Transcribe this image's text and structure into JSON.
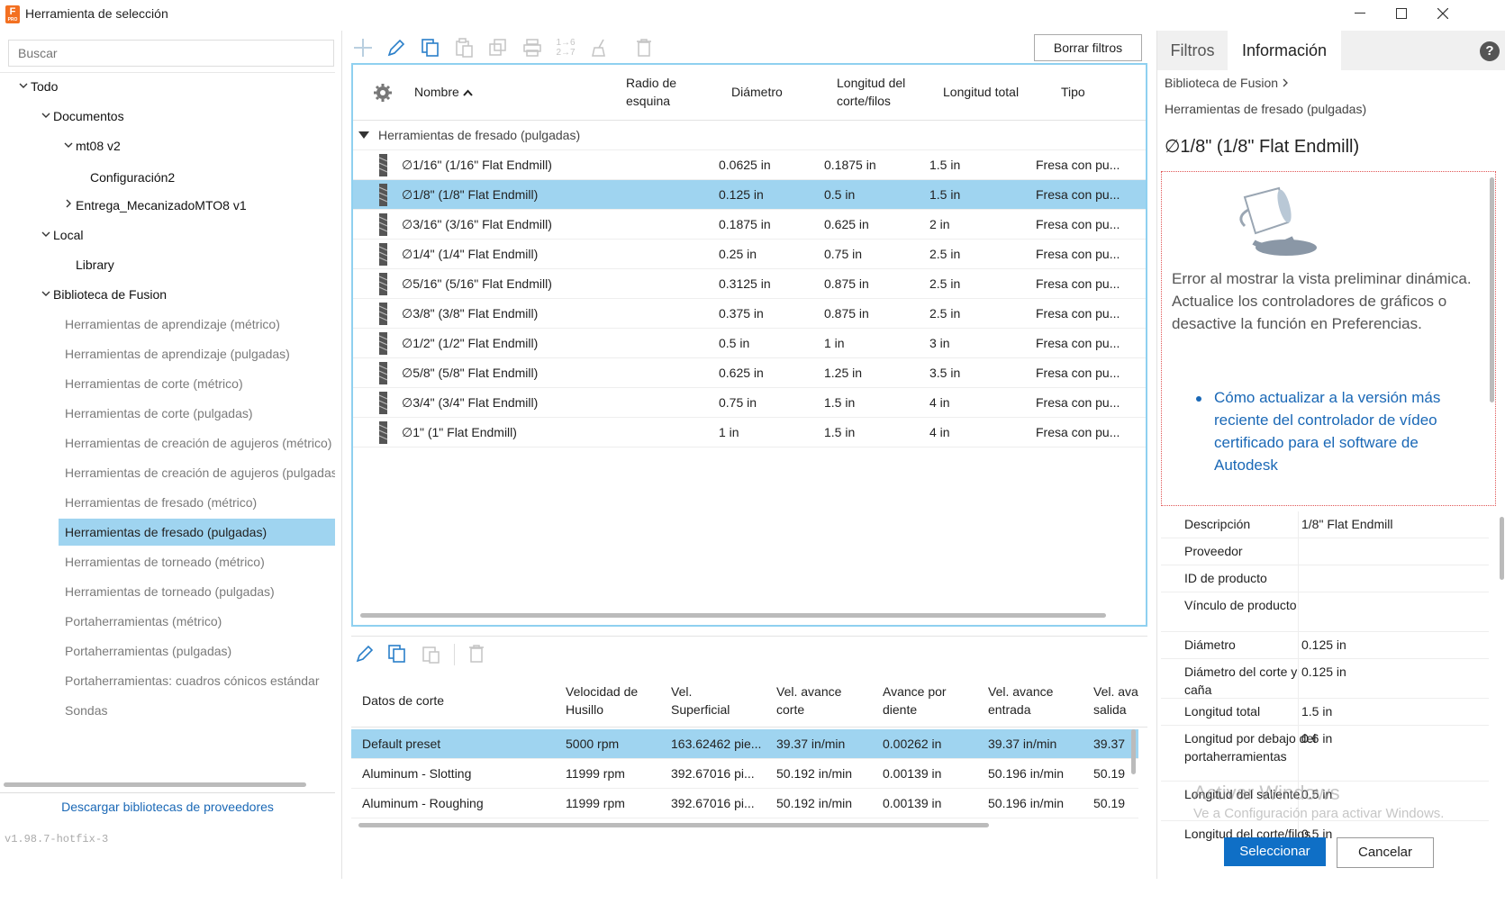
{
  "window": {
    "title": "Herramienta de selección",
    "app_icon_letter": "F",
    "app_icon_sub": "PRO"
  },
  "left": {
    "search_placeholder": "Buscar",
    "tree": [
      {
        "label": "Todo",
        "level": 0,
        "chev": "down",
        "style": "bold"
      },
      {
        "label": "Documentos",
        "level": 1,
        "chev": "down",
        "style": "bold"
      },
      {
        "label": "mt08 v2",
        "level": 2,
        "chev": "down",
        "style": "bold"
      },
      {
        "label": "Configuración2",
        "level": 3,
        "chev": "",
        "style": "bold"
      },
      {
        "label": "Entrega_MecanizadoMTO8 v1",
        "level": 2,
        "chev": "right",
        "style": "bold"
      },
      {
        "label": "Local",
        "level": 1,
        "chev": "down",
        "style": "bold"
      },
      {
        "label": "Library",
        "level": 2,
        "chev": "",
        "style": "bold"
      },
      {
        "label": "Biblioteca de Fusion",
        "level": 1,
        "chev": "down",
        "style": "bold"
      },
      {
        "label": "Herramientas de aprendizaje (métrico)",
        "level": 2,
        "chev": "",
        "style": "grey"
      },
      {
        "label": "Herramientas de aprendizaje (pulgadas)",
        "level": 2,
        "chev": "",
        "style": "grey"
      },
      {
        "label": "Herramientas de corte (métrico)",
        "level": 2,
        "chev": "",
        "style": "grey"
      },
      {
        "label": "Herramientas de corte (pulgadas)",
        "level": 2,
        "chev": "",
        "style": "grey"
      },
      {
        "label": "Herramientas de creación de agujeros (métrico)",
        "level": 2,
        "chev": "",
        "style": "grey"
      },
      {
        "label": "Herramientas de creación de agujeros (pulgadas)",
        "level": 2,
        "chev": "",
        "style": "grey"
      },
      {
        "label": "Herramientas de fresado (métrico)",
        "level": 2,
        "chev": "",
        "style": "grey"
      },
      {
        "label": "Herramientas de fresado (pulgadas)",
        "level": 2,
        "chev": "",
        "style": "sel"
      },
      {
        "label": "Herramientas de torneado (métrico)",
        "level": 2,
        "chev": "",
        "style": "grey"
      },
      {
        "label": "Herramientas de torneado (pulgadas)",
        "level": 2,
        "chev": "",
        "style": "grey"
      },
      {
        "label": "Portaherramientas (métrico)",
        "level": 2,
        "chev": "",
        "style": "grey"
      },
      {
        "label": "Portaherramientas (pulgadas)",
        "level": 2,
        "chev": "",
        "style": "grey"
      },
      {
        "label": "Portaherramientas: cuadros cónicos estándar",
        "level": 2,
        "chev": "",
        "style": "grey"
      },
      {
        "label": "Sondas",
        "level": 2,
        "chev": "",
        "style": "grey"
      }
    ],
    "footer_link": "Descargar bibliotecas de proveedores",
    "version": "v1.98.7-hotfix-3"
  },
  "toolbar": {
    "clear_filters": "Borrar filtros",
    "renumber_top": "1→6",
    "renumber_bottom": "2→7"
  },
  "table": {
    "headers": {
      "name": "Nombre",
      "corner_radius": "Radio de\nesquina",
      "diameter": "Diámetro",
      "flute_length": "Longitud del\ncorte/filos",
      "total_length": "Longitud total",
      "type": "Tipo"
    },
    "group": "Herramientas de fresado (pulgadas)",
    "rows": [
      {
        "name": "∅1/16\" (1/16\" Flat Endmill)",
        "diameter": "0.0625 in",
        "flute": "0.1875 in",
        "total": "1.5 in",
        "type": "Fresa con pu...",
        "selected": false
      },
      {
        "name": "∅1/8\" (1/8\" Flat Endmill)",
        "diameter": "0.125 in",
        "flute": "0.5 in",
        "total": "1.5 in",
        "type": "Fresa con pu...",
        "selected": true
      },
      {
        "name": "∅3/16\" (3/16\" Flat Endmill)",
        "diameter": "0.1875 in",
        "flute": "0.625 in",
        "total": "2 in",
        "type": "Fresa con pu...",
        "selected": false
      },
      {
        "name": "∅1/4\" (1/4\" Flat Endmill)",
        "diameter": "0.25 in",
        "flute": "0.75 in",
        "total": "2.5 in",
        "type": "Fresa con pu...",
        "selected": false
      },
      {
        "name": "∅5/16\" (5/16\" Flat Endmill)",
        "diameter": "0.3125 in",
        "flute": "0.875 in",
        "total": "2.5 in",
        "type": "Fresa con pu...",
        "selected": false
      },
      {
        "name": "∅3/8\" (3/8\" Flat Endmill)",
        "diameter": "0.375 in",
        "flute": "0.875 in",
        "total": "2.5 in",
        "type": "Fresa con pu...",
        "selected": false
      },
      {
        "name": "∅1/2\" (1/2\" Flat Endmill)",
        "diameter": "0.5 in",
        "flute": "1 in",
        "total": "3 in",
        "type": "Fresa con pu...",
        "selected": false
      },
      {
        "name": "∅5/8\" (5/8\" Flat Endmill)",
        "diameter": "0.625 in",
        "flute": "1.25 in",
        "total": "3.5 in",
        "type": "Fresa con pu...",
        "selected": false
      },
      {
        "name": "∅3/4\" (3/4\" Flat Endmill)",
        "diameter": "0.75 in",
        "flute": "1.5 in",
        "total": "4 in",
        "type": "Fresa con pu...",
        "selected": false
      },
      {
        "name": "∅1\" (1\" Flat Endmill)",
        "diameter": "1 in",
        "flute": "1.5 in",
        "total": "4 in",
        "type": "Fresa con pu...",
        "selected": false
      }
    ]
  },
  "presets": {
    "headers": [
      "Datos de corte",
      "Velocidad de\nHusillo",
      "Vel.\nSuperficial",
      "Vel. avance\ncorte",
      "Avance por\ndiente",
      "Vel. avance\nentrada",
      "Vel. ava\nsalida"
    ],
    "rows": [
      {
        "cells": [
          "Default preset",
          "5000 rpm",
          "163.62462 pie...",
          "39.37 in/min",
          "0.00262 in",
          "39.37 in/min",
          "39.37"
        ],
        "selected": true
      },
      {
        "cells": [
          "Aluminum - Slotting",
          "11999 rpm",
          "392.67016 pi...",
          "50.192 in/min",
          "0.00139 in",
          "50.196 in/min",
          "50.19"
        ],
        "selected": false
      },
      {
        "cells": [
          "Aluminum - Roughing",
          "11999 rpm",
          "392.67016 pi...",
          "50.192 in/min",
          "0.00139 in",
          "50.196 in/min",
          "50.19"
        ],
        "selected": false
      }
    ]
  },
  "right": {
    "tabs": [
      "Filtros",
      "Información"
    ],
    "active_tab": "Información",
    "help": "?",
    "breadcrumb1": "Biblioteca de Fusion",
    "breadcrumb2": "Herramientas de fresado (pulgadas)",
    "tool_title": "∅1/8\" (1/8\" Flat Endmill)",
    "preview_error": "Error al mostrar la vista preliminar dinámica. Actualice los controladores de gráficos o desactive la función en Preferencias.",
    "preview_link": "Cómo actualizar a la versión más reciente del controlador de vídeo certificado para el software de Autodesk",
    "properties": [
      {
        "k": "Descripción",
        "v": "1/8\" Flat Endmill",
        "h": 30
      },
      {
        "k": "Proveedor",
        "v": "",
        "h": 30
      },
      {
        "k": "ID de producto",
        "v": "",
        "h": 30
      },
      {
        "k": "Vínculo de producto",
        "v": "",
        "h": 44
      },
      {
        "k": "Diámetro",
        "v": "0.125 in",
        "h": 30
      },
      {
        "k": "Diámetro del corte y caña",
        "v": "0.125 in",
        "h": 44
      },
      {
        "k": "Longitud total",
        "v": "1.5 in",
        "h": 30
      },
      {
        "k": "Longitud por debajo del portaherramientas",
        "v": "0.6 in",
        "h": 62
      },
      {
        "k": "Longitud del saliente",
        "v": "0.5 in",
        "h": 44
      },
      {
        "k": "Longitud del corte/filos",
        "v": "0.5 in",
        "h": 44
      }
    ]
  },
  "watermark": {
    "line1": "Activar Windows",
    "line2": "Ve a Configuración para activar Windows."
  },
  "buttons": {
    "select": "Seleccionar",
    "cancel": "Cancelar"
  }
}
